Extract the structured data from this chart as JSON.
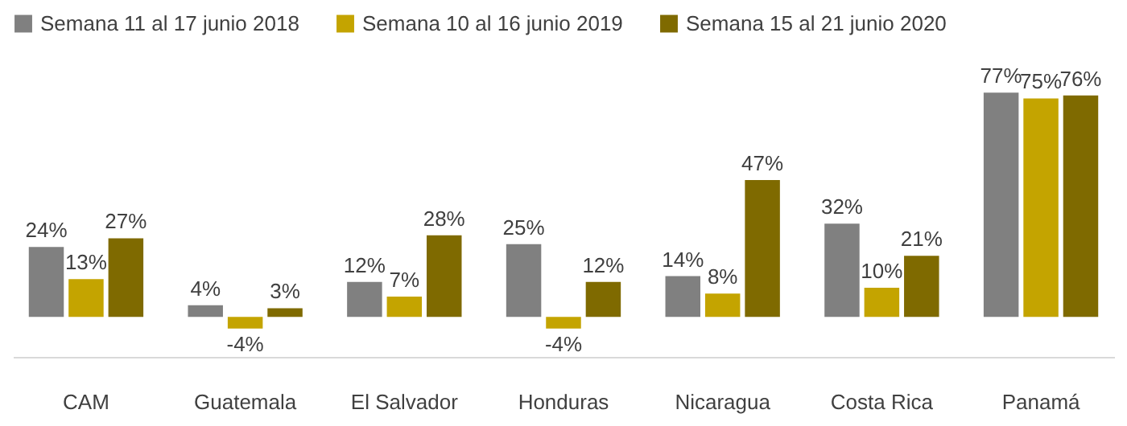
{
  "chart_data": {
    "type": "bar",
    "categories": [
      "CAM",
      "Guatemala",
      "El Salvador",
      "Honduras",
      "Nicaragua",
      "Costa Rica",
      "Panamá"
    ],
    "series": [
      {
        "name": "Semana 11 al 17 junio 2018",
        "color": "#808080",
        "values": [
          24,
          4,
          12,
          25,
          14,
          32,
          77
        ],
        "value_labels": [
          "24%",
          "4%",
          "12%",
          "25%",
          "14%",
          "32%",
          "77%"
        ]
      },
      {
        "name": "Semana 10 al 16 junio 2019",
        "color": "#c4a400",
        "values": [
          13,
          -4,
          7,
          -4,
          8,
          10,
          75
        ],
        "value_labels": [
          "13%",
          "-4%",
          "7%",
          "-4%",
          "8%",
          "10%",
          "75%"
        ]
      },
      {
        "name": "Semana 15 al 21 junio 2020",
        "color": "#7f6a00",
        "values": [
          27,
          3,
          28,
          12,
          47,
          21,
          76
        ],
        "value_labels": [
          "27%",
          "3%",
          "28%",
          "12%",
          "47%",
          "21%",
          "76%"
        ]
      }
    ],
    "legend": "top",
    "grid": false
  }
}
